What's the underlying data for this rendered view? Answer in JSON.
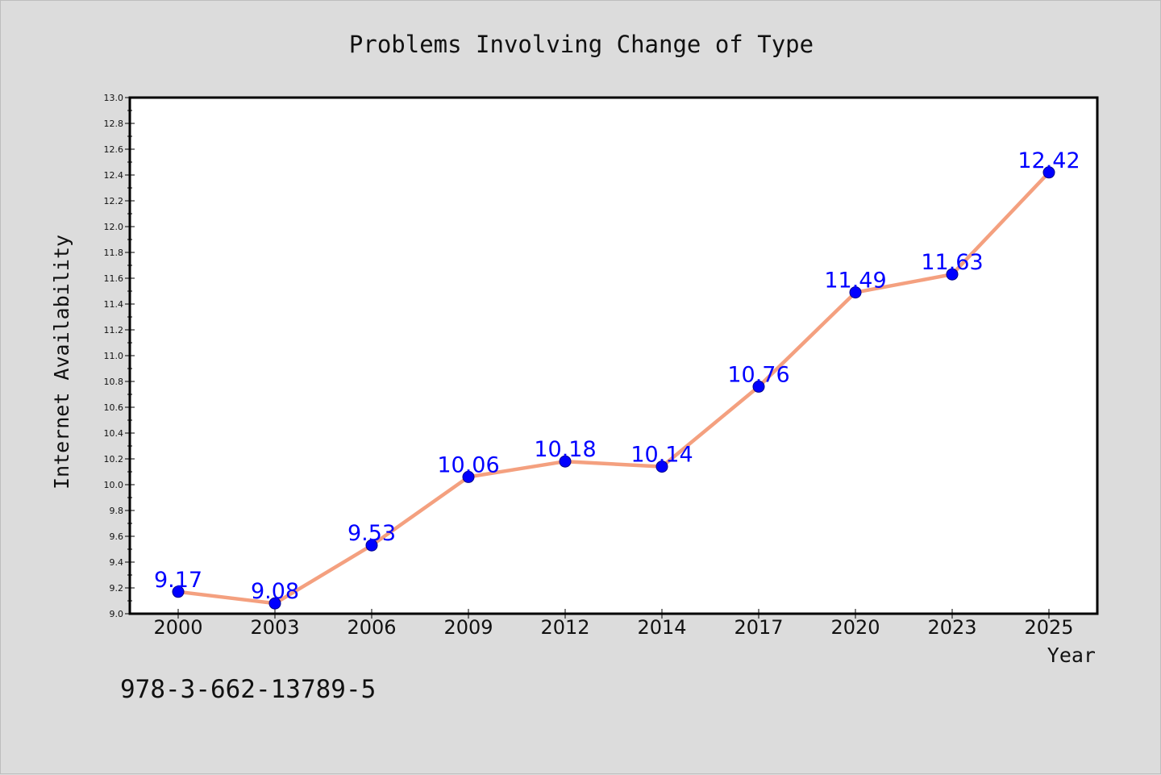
{
  "chart_data": {
    "type": "line",
    "title": "Problems Involving Change of Type",
    "xlabel": "Year",
    "ylabel": "Internet Availability",
    "categories": [
      "2000",
      "2003",
      "2006",
      "2009",
      "2012",
      "2014",
      "2017",
      "2020",
      "2023",
      "2025"
    ],
    "series": [
      {
        "values": [
          9.17,
          9.08,
          9.53,
          10.06,
          10.18,
          10.14,
          10.76,
          11.49,
          11.63,
          12.42
        ]
      }
    ],
    "data_labels": [
      "9.17",
      "9.08",
      "9.53",
      "10.06",
      "10.18",
      "10.14",
      "10.76",
      "11.49",
      "11.63",
      "12.42"
    ],
    "ylim": [
      9.0,
      13.0
    ],
    "yticks": [
      "9.0",
      "9.2",
      "9.4",
      "9.6",
      "9.8",
      "10.0",
      "10.2",
      "10.4",
      "10.6",
      "10.8",
      "11.0",
      "11.2",
      "11.4",
      "11.6",
      "11.8",
      "12.0",
      "12.2",
      "12.4",
      "12.6",
      "12.8",
      "13.0"
    ],
    "grid": false,
    "legend": "none",
    "line_color": "#f4a07f",
    "marker_color": "#0000ff",
    "label_color": "#0000ff"
  },
  "footer": {
    "text": "978-3-662-13789-5"
  }
}
